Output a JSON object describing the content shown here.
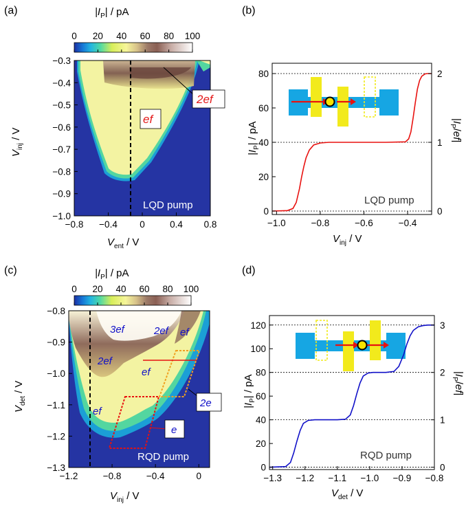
{
  "chart_data": [
    {
      "panel": "(a)",
      "type": "heatmap",
      "colorbar": {
        "label_main": "|I",
        "label_sub": "P",
        "label_rest": "| / pA",
        "ticks": [
          "0",
          "20",
          "40",
          "60",
          "80",
          "100"
        ],
        "range": [
          0,
          100
        ]
      },
      "xlabel_main": "V",
      "xlabel_sub": "ent",
      "xlabel_rest": " / V",
      "ylabel_main": "V",
      "ylabel_sub": "inj",
      "ylabel_rest": " / V",
      "xticks": [
        "−0.8",
        "−0.4",
        "0",
        "0.4",
        "0.8"
      ],
      "yticks": [
        "−0.3",
        "−0.4",
        "−0.5",
        "−0.6",
        "−0.7",
        "−0.8",
        "−0.9",
        "−1.0"
      ],
      "xlim": [
        -0.8,
        0.8
      ],
      "ylim": [
        -1.0,
        -0.3
      ],
      "annotations": {
        "ef_label": "ef",
        "twoef_label": "2ef",
        "pump_label": "LQD pump"
      },
      "dashed_line_x": 0
    },
    {
      "panel": "(b)",
      "type": "line",
      "xlabel_main": "V",
      "xlabel_sub": "inj",
      "xlabel_rest": " / V",
      "ylabel_main": "|I",
      "ylabel_sub": "P",
      "ylabel_rest": "| / pA",
      "y2label": "|I_P/ef|",
      "xticks": [
        "−1.0",
        "−0.8",
        "−0.6",
        "−0.4"
      ],
      "yticks": [
        "0",
        "20",
        "40",
        "60",
        "80"
      ],
      "y2ticks": [
        "0",
        "1",
        "2"
      ],
      "xlim": [
        -1.02,
        -0.29
      ],
      "ylim": [
        -2,
        86
      ],
      "series": [
        {
          "color": "#e8110f",
          "x": [
            -1.02,
            -0.95,
            -0.925,
            -0.91,
            -0.895,
            -0.885,
            -0.875,
            -0.865,
            -0.85,
            -0.83,
            -0.8,
            -0.76,
            -0.7,
            -0.6,
            -0.5,
            -0.41,
            -0.395,
            -0.385,
            -0.375,
            -0.365,
            -0.355,
            -0.345,
            -0.335,
            -0.32,
            -0.31,
            -0.29
          ],
          "y": [
            0,
            0.3,
            1.5,
            5,
            13,
            20,
            26,
            31,
            35.5,
            38.5,
            39.6,
            40,
            40,
            40,
            40,
            40.3,
            42,
            46,
            54,
            63,
            71,
            76,
            78.5,
            79.8,
            80,
            80
          ]
        }
      ],
      "pump_label": "LQD pump"
    },
    {
      "panel": "(c)",
      "type": "heatmap",
      "colorbar": {
        "label_main": "|I",
        "label_sub": "P",
        "label_rest": "| / pA",
        "ticks": [
          "0",
          "20",
          "40",
          "60",
          "80",
          "100"
        ],
        "range": [
          0,
          100
        ]
      },
      "xlabel_main": "V",
      "xlabel_sub": "inj",
      "xlabel_rest": " / V",
      "ylabel_main": "V",
      "ylabel_sub": "det",
      "ylabel_rest": " / V",
      "xticks": [
        "−1.2",
        "−0.8",
        "−0.4",
        "0"
      ],
      "yticks": [
        "−0.8",
        "−0.9",
        "−1.0",
        "−1.1",
        "−1.2",
        "−1.3"
      ],
      "xlim": [
        -1.2,
        0.1
      ],
      "ylim": [
        -1.3,
        -0.8
      ],
      "annotations": {
        "l3ef": "3ef",
        "l2ef_a": "2ef",
        "l2ef_b": "2ef",
        "lef_a": "ef",
        "lef_b": "ef",
        "lef_c": "ef",
        "l2e": "2e",
        "le": "e",
        "pump_label": "RQD pump"
      },
      "dashed_line_x": -0.9
    },
    {
      "panel": "(d)",
      "type": "line",
      "xlabel_main": "V",
      "xlabel_sub": "det",
      "xlabel_rest": " / V",
      "ylabel_main": "|I",
      "ylabel_sub": "P",
      "ylabel_rest": "| / pA",
      "y2label": "|I_P/ef|",
      "xticks": [
        "−1.3",
        "−1.2",
        "−1.1",
        "−1.0",
        "−0.9",
        "−0.8"
      ],
      "yticks": [
        "0",
        "20",
        "40",
        "60",
        "80",
        "100",
        "120"
      ],
      "y2ticks": [
        "0",
        "1",
        "2",
        "3"
      ],
      "xlim": [
        -1.31,
        -0.8
      ],
      "ylim": [
        -2,
        128
      ],
      "series": [
        {
          "color": "#1010c8",
          "x": [
            -1.31,
            -1.26,
            -1.245,
            -1.235,
            -1.225,
            -1.215,
            -1.205,
            -1.19,
            -1.17,
            -1.14,
            -1.1,
            -1.075,
            -1.06,
            -1.05,
            -1.04,
            -1.03,
            -1.02,
            -1.005,
            -0.99,
            -0.95,
            -0.925,
            -0.91,
            -0.895,
            -0.885,
            -0.875,
            -0.865,
            -0.85,
            -0.835,
            -0.82,
            -0.8
          ],
          "y": [
            0,
            0.5,
            4,
            12,
            22,
            31,
            37,
            39.5,
            40,
            40,
            40,
            40.5,
            44,
            52,
            62,
            71,
            77,
            79.5,
            80,
            80,
            80.8,
            85,
            95,
            104,
            111,
            115.5,
            118.5,
            119.5,
            120,
            120
          ]
        }
      ],
      "pump_label": "RQD pump"
    }
  ]
}
